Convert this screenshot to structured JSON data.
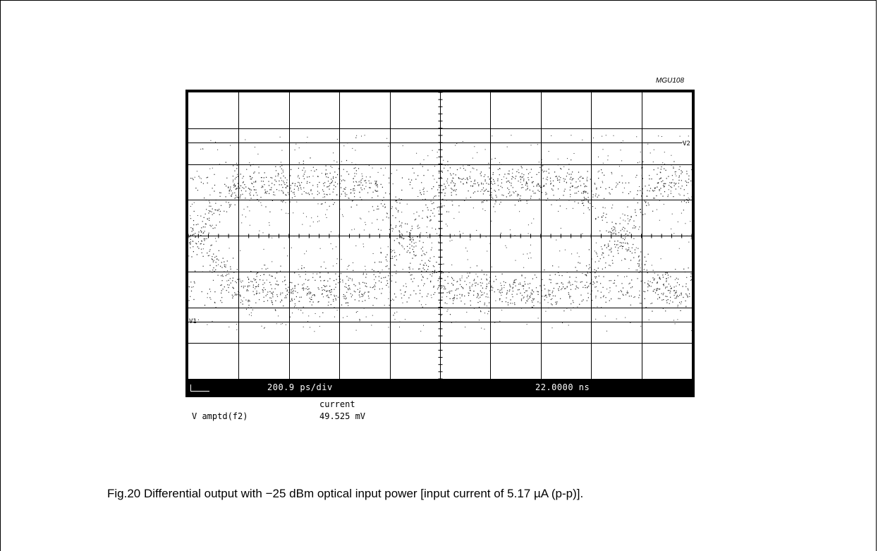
{
  "figure_id": "MGU108",
  "scope": {
    "timebase": "200.9 ps/div",
    "delay": "22.0000 ns",
    "marker_upper": "V2",
    "marker_lower": "V1",
    "measurement_header": "current",
    "measurement_name": "V amptd(f2)",
    "measurement_value": "49.525 mV"
  },
  "caption": "Fig.20  Differential output with −25 dBm optical input power [input current of 5.17 µA (p-p)]."
}
